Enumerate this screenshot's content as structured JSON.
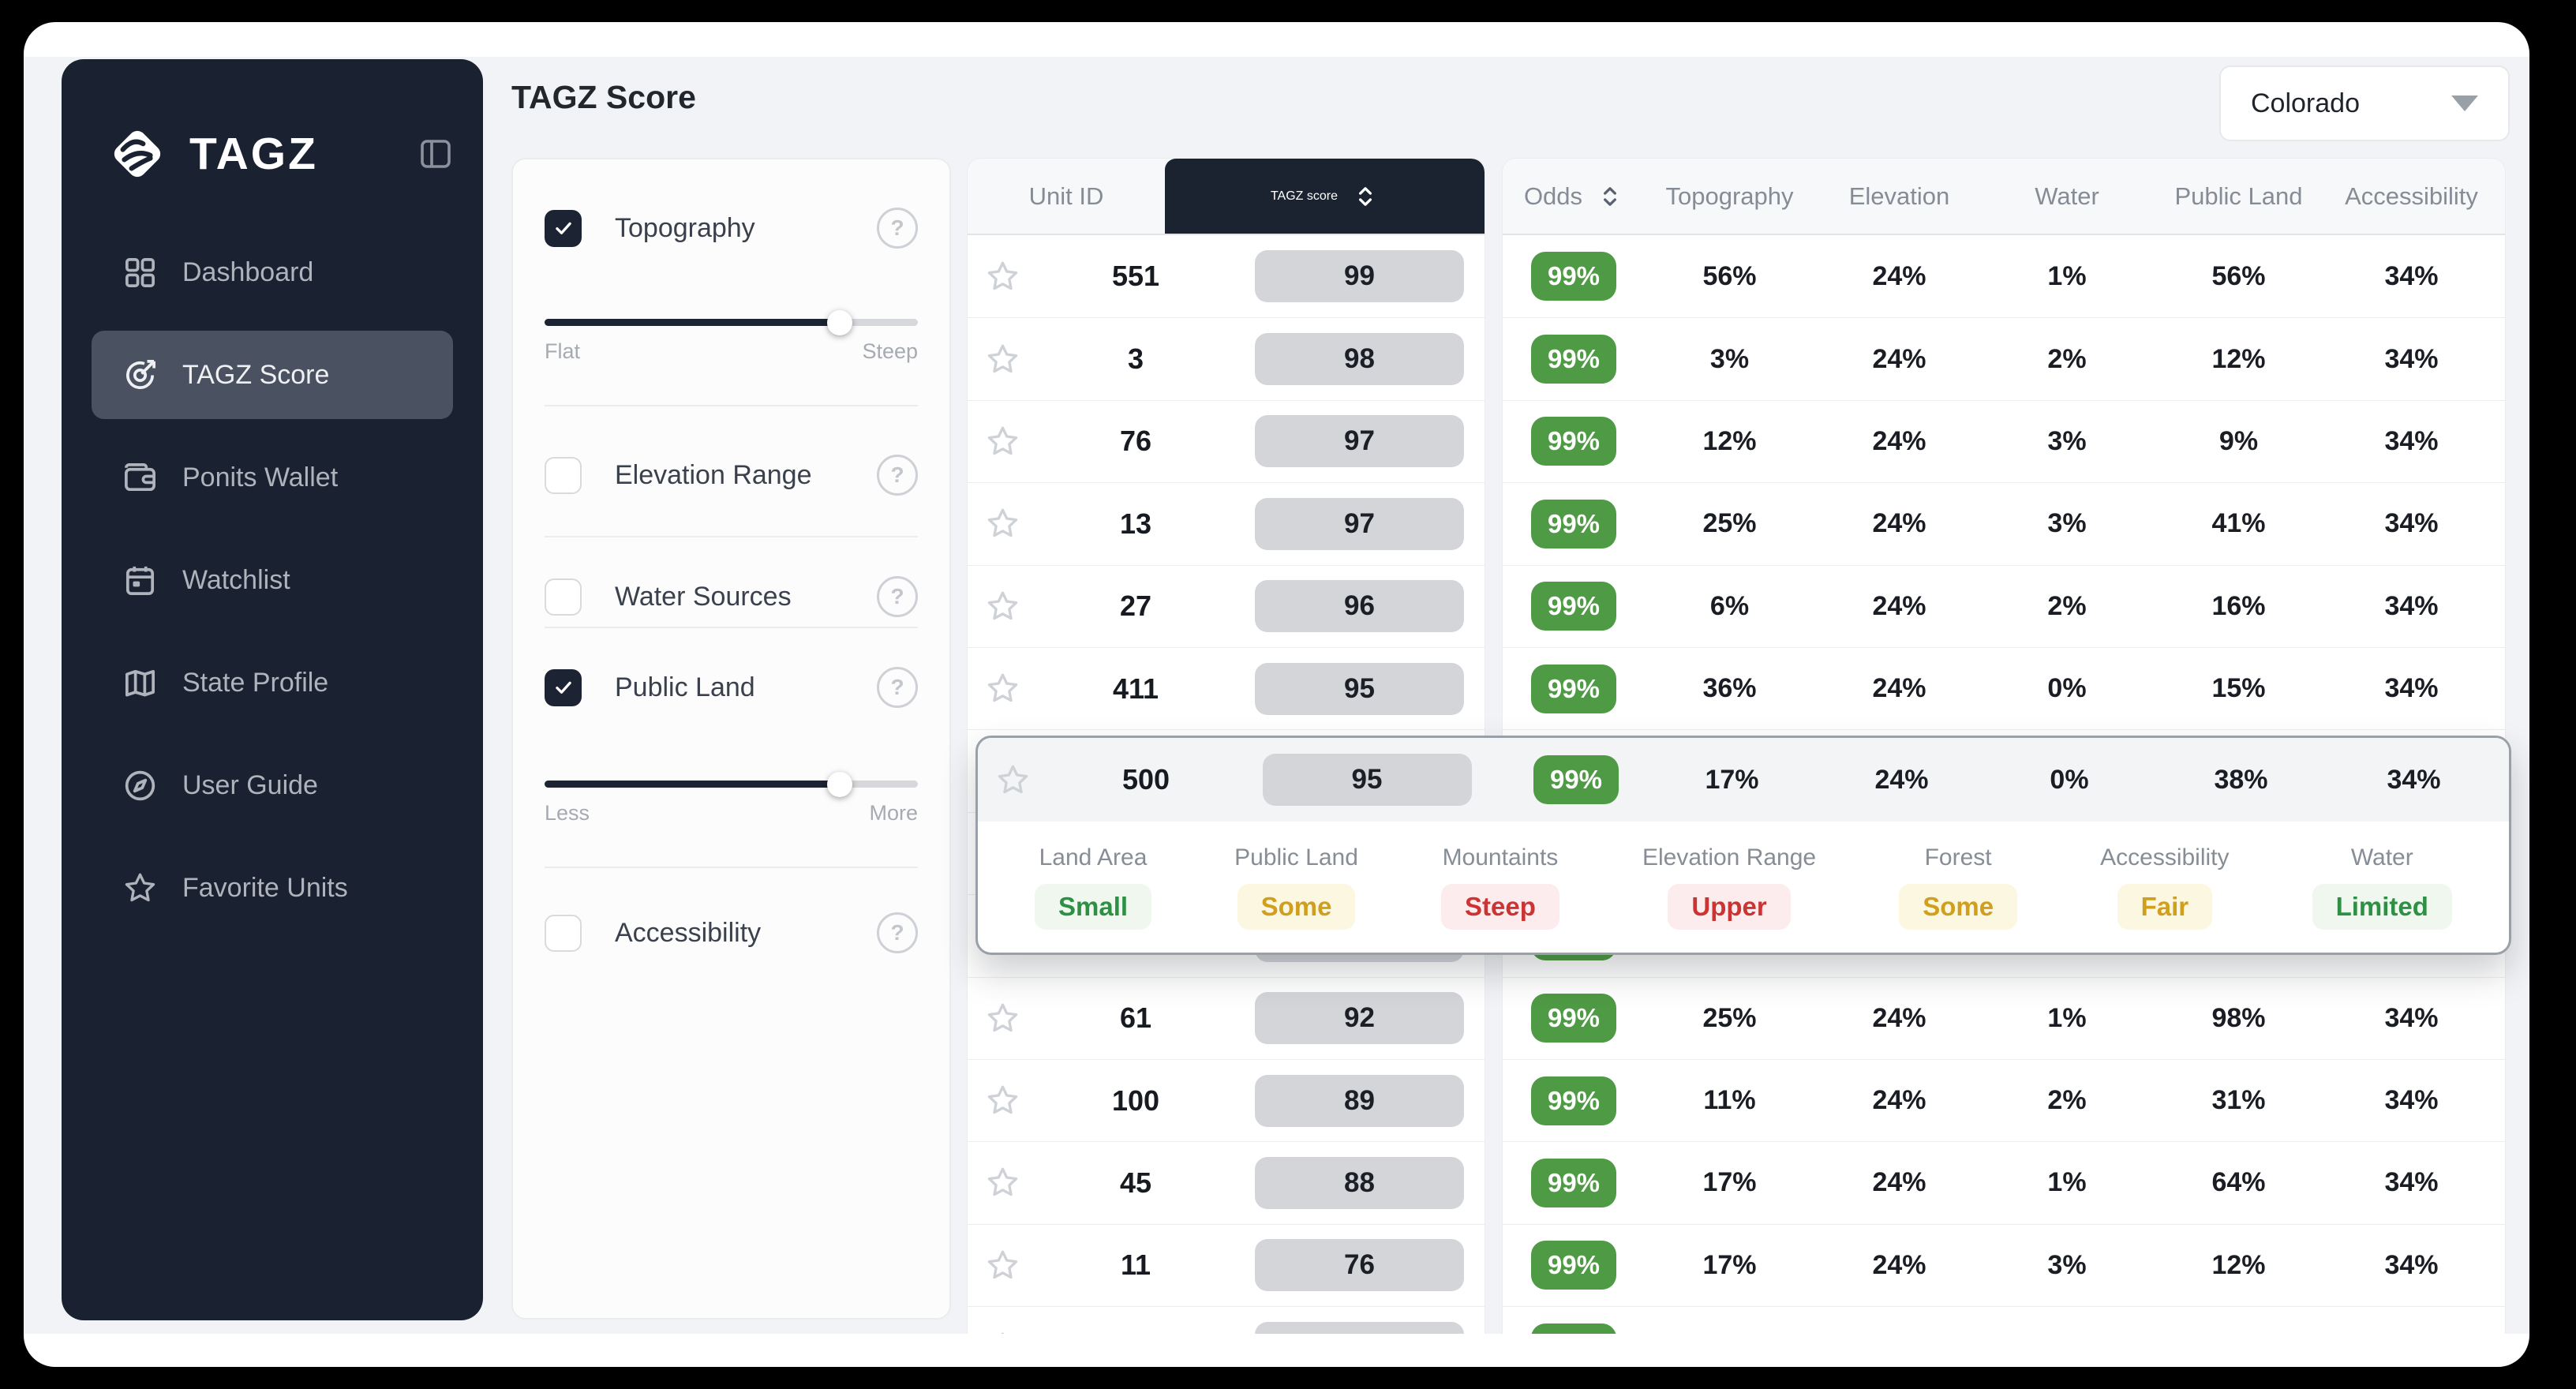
{
  "brand": {
    "name": "TAGZ",
    "logo_icon": "tagz-logo",
    "collapse_icon": "panel-collapse"
  },
  "header": {
    "title": "TAGZ Score",
    "state_select": {
      "value": "Colorado",
      "icon": "chevron-down"
    }
  },
  "sidebar": {
    "items": [
      {
        "label": "Dashboard",
        "icon": "dashboard",
        "active": false
      },
      {
        "label": "TAGZ Score",
        "icon": "target",
        "active": true
      },
      {
        "label": "Ponits Wallet",
        "icon": "wallet",
        "active": false
      },
      {
        "label": "Watchlist",
        "icon": "calendar",
        "active": false
      },
      {
        "label": "State Profile",
        "icon": "map",
        "active": false
      },
      {
        "label": "User Guide",
        "icon": "compass",
        "active": false
      },
      {
        "label": "Favorite Units",
        "icon": "star",
        "active": false
      }
    ]
  },
  "filters": [
    {
      "label": "Topography",
      "checked": true,
      "help_icon": "question",
      "slider": {
        "value_pct": 79,
        "min_label": "Flat",
        "max_label": "Steep"
      }
    },
    {
      "label": "Elevation Range",
      "checked": false,
      "help_icon": "question",
      "slider": null
    },
    {
      "label": "Water Sources",
      "checked": false,
      "help_icon": "question",
      "slider": null
    },
    {
      "label": "Public Land",
      "checked": true,
      "help_icon": "question",
      "slider": {
        "value_pct": 79,
        "min_label": "Less",
        "max_label": "More"
      }
    },
    {
      "label": "Accessibility",
      "checked": false,
      "help_icon": "question",
      "slider": null
    }
  ],
  "table": {
    "left_headers": [
      {
        "label": "Unit ID",
        "sortable": false
      },
      {
        "label": "TAGZ score",
        "sortable": true,
        "sort_icon": "sort-chevrons"
      }
    ],
    "right_headers": [
      {
        "label": "Odds",
        "sortable": true,
        "sort_icon": "sort-chevrons"
      },
      {
        "label": "Topography",
        "sortable": false
      },
      {
        "label": "Elevation",
        "sortable": false
      },
      {
        "label": "Water",
        "sortable": false
      },
      {
        "label": "Public Land",
        "sortable": false
      },
      {
        "label": "Accessibility",
        "sortable": false
      }
    ],
    "rows": [
      {
        "unit": "551",
        "score": "99",
        "odds": "99%",
        "cells": [
          "56%",
          "24%",
          "1%",
          "56%",
          "34%"
        ],
        "obscured": false
      },
      {
        "unit": "3",
        "score": "98",
        "odds": "99%",
        "cells": [
          "3%",
          "24%",
          "2%",
          "12%",
          "34%"
        ],
        "obscured": false
      },
      {
        "unit": "76",
        "score": "97",
        "odds": "99%",
        "cells": [
          "12%",
          "24%",
          "3%",
          "9%",
          "34%"
        ],
        "obscured": false
      },
      {
        "unit": "13",
        "score": "97",
        "odds": "99%",
        "cells": [
          "25%",
          "24%",
          "3%",
          "41%",
          "34%"
        ],
        "obscured": false
      },
      {
        "unit": "27",
        "score": "96",
        "odds": "99%",
        "cells": [
          "6%",
          "24%",
          "2%",
          "16%",
          "34%"
        ],
        "obscured": false
      },
      {
        "unit": "411",
        "score": "95",
        "odds": "99%",
        "cells": [
          "36%",
          "24%",
          "0%",
          "15%",
          "34%"
        ],
        "obscured": false
      },
      {
        "unit": "500",
        "score": "95",
        "odds": "99%",
        "cells": [
          "17%",
          "24%",
          "0%",
          "38%",
          "34%"
        ],
        "obscured": true
      },
      {
        "unit": "",
        "score": "",
        "odds": "",
        "cells": [
          "",
          "",
          "",
          "",
          ""
        ],
        "obscured": true
      },
      {
        "unit": "",
        "score": "",
        "odds": "",
        "cells": [
          "",
          "",
          "",
          "",
          ""
        ],
        "obscured": true
      },
      {
        "unit": "61",
        "score": "92",
        "odds": "99%",
        "cells": [
          "25%",
          "24%",
          "1%",
          "98%",
          "34%"
        ],
        "obscured": false
      },
      {
        "unit": "100",
        "score": "89",
        "odds": "99%",
        "cells": [
          "11%",
          "24%",
          "2%",
          "31%",
          "34%"
        ],
        "obscured": false
      },
      {
        "unit": "45",
        "score": "88",
        "odds": "99%",
        "cells": [
          "17%",
          "24%",
          "1%",
          "64%",
          "34%"
        ],
        "obscured": false
      },
      {
        "unit": "11",
        "score": "76",
        "odds": "99%",
        "cells": [
          "17%",
          "24%",
          "3%",
          "12%",
          "34%"
        ],
        "obscured": false
      },
      {
        "unit": "",
        "score": "",
        "odds": "",
        "cells": [
          "",
          "",
          "",
          "",
          ""
        ],
        "obscured": true
      }
    ],
    "expanded_row": {
      "unit": "500",
      "score": "95",
      "odds": "99%",
      "cells": [
        "17%",
        "24%",
        "0%",
        "38%",
        "34%"
      ],
      "details": [
        {
          "label": "Land Area",
          "value": "Small",
          "tone": "green"
        },
        {
          "label": "Public Land",
          "value": "Some",
          "tone": "amber"
        },
        {
          "label": "Mountaints",
          "value": "Steep",
          "tone": "red"
        },
        {
          "label": "Elevation Range",
          "value": "Upper",
          "tone": "red"
        },
        {
          "label": "Forest",
          "value": "Some",
          "tone": "amber"
        },
        {
          "label": "Accessibility",
          "value": "Fair",
          "tone": "amber"
        },
        {
          "label": "Water",
          "value": "Limited",
          "tone": "green"
        }
      ]
    }
  },
  "colors": {
    "frame": "#000000",
    "window": "#ffffff",
    "canvas": "#f2f3f6",
    "sidebar": "#1a2130",
    "sidebar_active": "#4a5160",
    "dark_header_cell": "#1b2331",
    "score_pill": "#d3d5d9",
    "odds_green": "#4f9a44",
    "chip_green": "#2e9044",
    "chip_amber": "#cf9f1d",
    "chip_red": "#cc3333",
    "overlay_border": "#9aa0a7"
  }
}
